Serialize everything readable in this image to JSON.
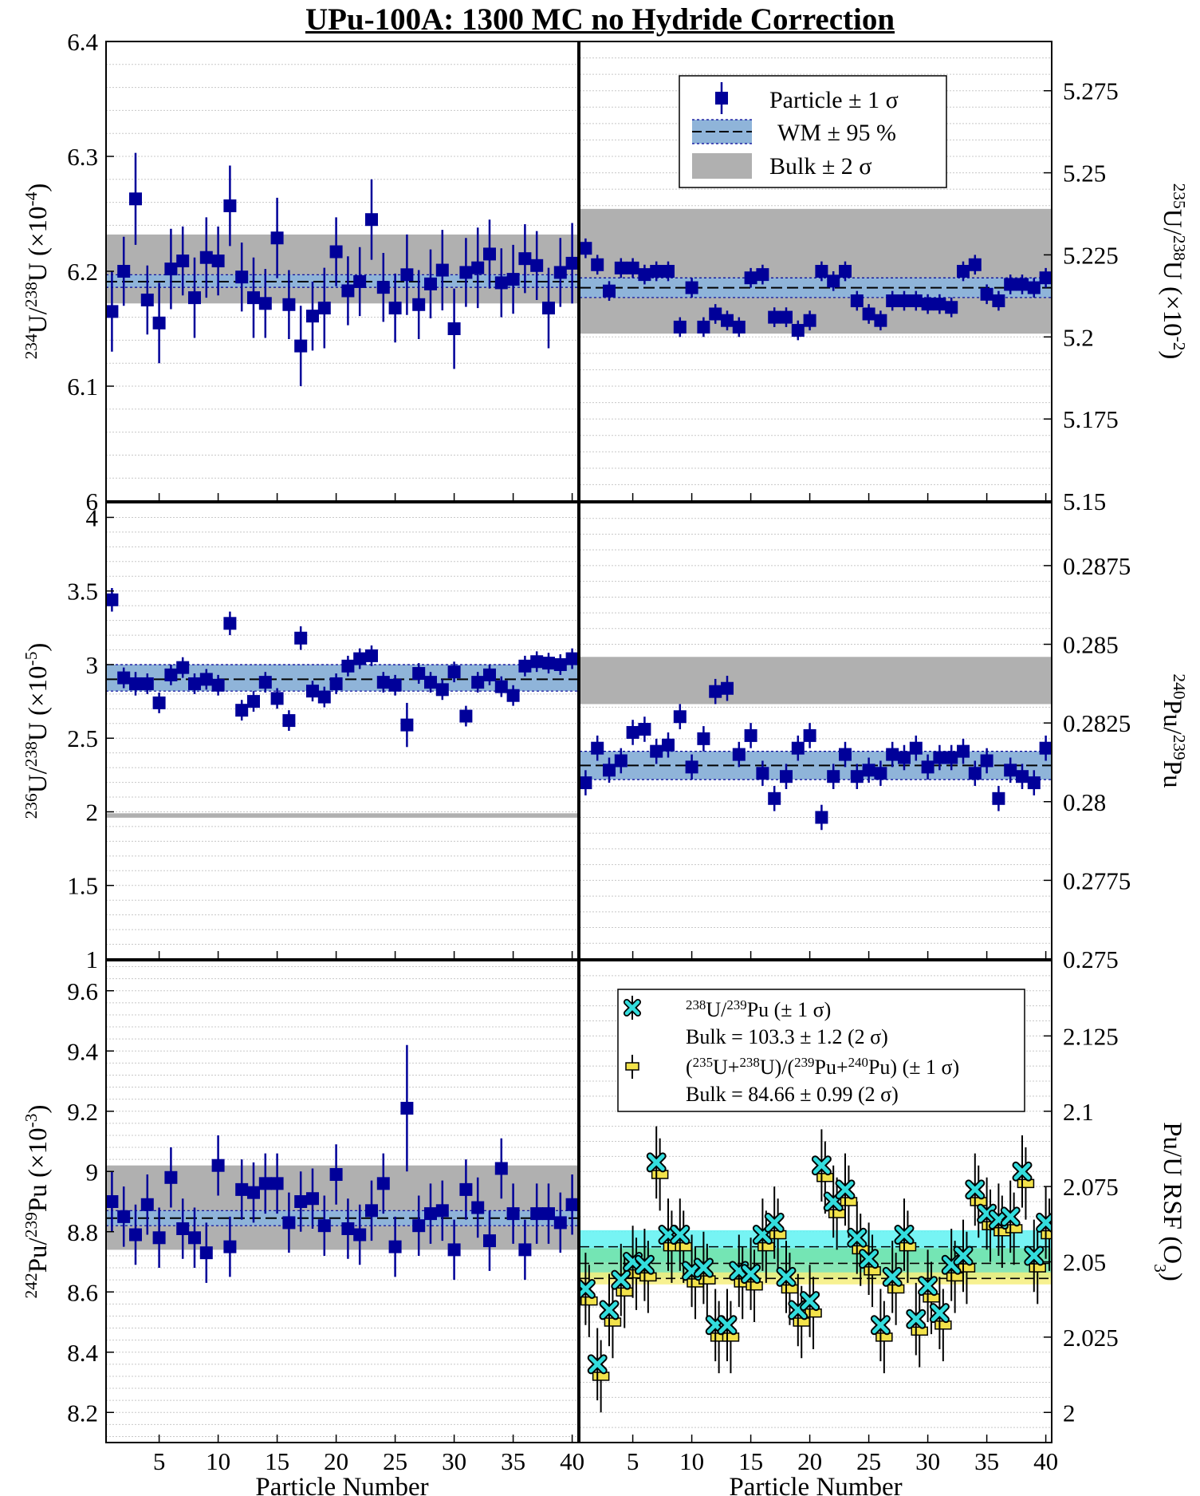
{
  "title": "UPu-100A: 1300 MC no Hydride Correction",
  "colors": {
    "marker": "#000099",
    "wm_band": "#8fb4d9",
    "bulk_band": "#b0b0b0",
    "cyan_marker": "#33dddd",
    "yellow_marker": "#f2e24a",
    "cyan_band": "#5ef2f2",
    "green_band": "#74e2a8",
    "yellow_band": "#f6ef7e"
  },
  "legends": {
    "top": {
      "particle": "Particle ± 1 σ",
      "wm": "WM ± 95 %",
      "bulk": "Bulk ± 2 σ"
    },
    "rsf": {
      "u_pu": "238U/239Pu (± 1 σ)",
      "u_pu_bulk": "Bulk = 103.3 ± 1.2 (2 σ)",
      "sum": "(235U+238U)/(239Pu+240Pu) (± 1 σ)",
      "sum_bulk": "Bulk = 84.66 ± 0.99 (2 σ)"
    }
  },
  "chart_data": [
    {
      "id": "u234",
      "type": "scatter",
      "ylabel": "234U/238U (×10-4)",
      "ylim": [
        6.0,
        6.4
      ],
      "yticks": [
        "6",
        "6.1",
        "6.2",
        "6.3",
        "6.4"
      ],
      "xlim": [
        0.5,
        40.5
      ],
      "xticks": [
        "5",
        "10",
        "15",
        "20",
        "25",
        "30",
        "35",
        "40"
      ],
      "xlabel": "",
      "wm": [
        6.186,
        6.197
      ],
      "wm_center": 6.191,
      "bulk": [
        6.172,
        6.232
      ],
      "x": [
        1,
        2,
        3,
        4,
        5,
        6,
        7,
        8,
        9,
        10,
        11,
        12,
        13,
        14,
        15,
        16,
        17,
        18,
        19,
        20,
        21,
        22,
        23,
        24,
        25,
        26,
        27,
        28,
        29,
        30,
        31,
        32,
        33,
        34,
        35,
        36,
        37,
        38,
        39,
        40
      ],
      "y": [
        6.165,
        6.2,
        6.263,
        6.175,
        6.155,
        6.202,
        6.209,
        6.177,
        6.212,
        6.209,
        6.257,
        6.195,
        6.177,
        6.172,
        6.229,
        6.171,
        6.135,
        6.161,
        6.168,
        6.217,
        6.183,
        6.191,
        6.245,
        6.186,
        6.168,
        6.197,
        6.171,
        6.189,
        6.201,
        6.15,
        6.199,
        6.203,
        6.215,
        6.19,
        6.193,
        6.211,
        6.205,
        6.168,
        6.199,
        6.207
      ],
      "err": [
        0.035,
        0.03,
        0.04,
        0.03,
        0.035,
        0.035,
        0.03,
        0.035,
        0.035,
        0.03,
        0.035,
        0.03,
        0.035,
        0.03,
        0.035,
        0.03,
        0.035,
        0.03,
        0.035,
        0.03,
        0.03,
        0.03,
        0.035,
        0.03,
        0.03,
        0.035,
        0.03,
        0.03,
        0.035,
        0.035,
        0.03,
        0.035,
        0.03,
        0.03,
        0.03,
        0.03,
        0.03,
        0.035,
        0.03,
        0.035
      ]
    },
    {
      "id": "u235",
      "type": "scatter",
      "ylabel": "235U/238U (×10-2)",
      "ylim": [
        5.15,
        5.29
      ],
      "yticks": [
        "5.15",
        "5.175",
        "5.2",
        "5.225",
        "5.25",
        "5.275"
      ],
      "xlim": [
        0.5,
        40.5
      ],
      "xticks": [
        "5",
        "10",
        "15",
        "20",
        "25",
        "30",
        "35",
        "40"
      ],
      "xlabel": "",
      "wm": [
        5.212,
        5.218
      ],
      "wm_center": 5.215,
      "bulk": [
        5.201,
        5.239
      ],
      "x": [
        1,
        2,
        3,
        4,
        5,
        6,
        7,
        8,
        9,
        10,
        11,
        12,
        13,
        14,
        15,
        16,
        17,
        18,
        19,
        20,
        21,
        22,
        23,
        24,
        25,
        26,
        27,
        28,
        29,
        30,
        31,
        32,
        33,
        34,
        35,
        36,
        37,
        38,
        39,
        40
      ],
      "y": [
        5.227,
        5.222,
        5.214,
        5.221,
        5.221,
        5.219,
        5.22,
        5.22,
        5.203,
        5.215,
        5.203,
        5.207,
        5.205,
        5.203,
        5.218,
        5.219,
        5.206,
        5.206,
        5.202,
        5.205,
        5.22,
        5.217,
        5.22,
        5.211,
        5.207,
        5.205,
        5.211,
        5.211,
        5.211,
        5.21,
        5.21,
        5.209,
        5.22,
        5.222,
        5.213,
        5.211,
        5.216,
        5.216,
        5.215,
        5.218
      ],
      "err": [
        0.003,
        0.003,
        0.003,
        0.003,
        0.003,
        0.003,
        0.003,
        0.003,
        0.003,
        0.003,
        0.003,
        0.003,
        0.003,
        0.003,
        0.003,
        0.003,
        0.003,
        0.003,
        0.003,
        0.003,
        0.003,
        0.003,
        0.003,
        0.003,
        0.003,
        0.003,
        0.003,
        0.003,
        0.003,
        0.003,
        0.003,
        0.003,
        0.003,
        0.003,
        0.003,
        0.003,
        0.003,
        0.003,
        0.003,
        0.003
      ]
    },
    {
      "id": "u236",
      "type": "scatter",
      "ylabel": "236U/238U (×10-5)",
      "ylim": [
        1.0,
        4.1
      ],
      "yticks": [
        "1",
        "1.5",
        "2",
        "2.5",
        "3",
        "3.5",
        "4"
      ],
      "xlim": [
        0.5,
        40.5
      ],
      "xticks": [
        "5",
        "10",
        "15",
        "20",
        "25",
        "30",
        "35",
        "40"
      ],
      "xlabel": "",
      "wm": [
        2.82,
        3.0
      ],
      "wm_center": 2.9,
      "bulk": [
        1.96,
        1.99
      ],
      "x": [
        1,
        2,
        3,
        4,
        5,
        6,
        7,
        8,
        9,
        10,
        11,
        12,
        13,
        14,
        15,
        16,
        17,
        18,
        19,
        20,
        21,
        22,
        23,
        24,
        25,
        26,
        27,
        28,
        29,
        30,
        31,
        32,
        33,
        34,
        35,
        36,
        37,
        38,
        39,
        40
      ],
      "y": [
        3.44,
        2.91,
        2.87,
        2.87,
        2.74,
        2.93,
        2.98,
        2.87,
        2.9,
        2.86,
        3.28,
        2.69,
        2.75,
        2.88,
        2.77,
        2.62,
        3.18,
        2.82,
        2.78,
        2.87,
        2.99,
        3.04,
        3.06,
        2.88,
        2.86,
        2.59,
        2.94,
        2.88,
        2.83,
        2.95,
        2.65,
        2.88,
        2.93,
        2.85,
        2.79,
        2.99,
        3.02,
        3.01,
        3.0,
        3.04
      ],
      "err": [
        0.08,
        0.07,
        0.08,
        0.07,
        0.07,
        0.07,
        0.07,
        0.07,
        0.07,
        0.07,
        0.08,
        0.07,
        0.07,
        0.07,
        0.07,
        0.07,
        0.08,
        0.07,
        0.07,
        0.07,
        0.07,
        0.07,
        0.07,
        0.07,
        0.07,
        0.15,
        0.07,
        0.07,
        0.07,
        0.07,
        0.07,
        0.07,
        0.07,
        0.07,
        0.07,
        0.07,
        0.07,
        0.07,
        0.07,
        0.07
      ]
    },
    {
      "id": "pu240",
      "type": "scatter",
      "ylabel": "240Pu/239Pu",
      "ylim": [
        0.275,
        0.2895
      ],
      "yticks": [
        "0.275",
        "0.2775",
        "0.28",
        "0.2825",
        "0.285",
        "0.2875"
      ],
      "xlim": [
        0.5,
        40.5
      ],
      "xticks": [
        "5",
        "10",
        "15",
        "20",
        "25",
        "30",
        "35",
        "40"
      ],
      "xlabel": "",
      "wm": [
        0.2807,
        0.2816
      ],
      "wm_center": 0.28115,
      "bulk": [
        0.2831,
        0.2846
      ],
      "x": [
        1,
        2,
        3,
        4,
        5,
        6,
        7,
        8,
        9,
        10,
        11,
        12,
        13,
        14,
        15,
        16,
        17,
        18,
        19,
        20,
        21,
        22,
        23,
        24,
        25,
        26,
        27,
        28,
        29,
        30,
        31,
        32,
        33,
        34,
        35,
        36,
        37,
        38,
        39,
        40
      ],
      "y": [
        0.2806,
        0.2817,
        0.281,
        0.2813,
        0.2822,
        0.2823,
        0.2816,
        0.2818,
        0.2827,
        0.2811,
        0.282,
        0.2835,
        0.2836,
        0.2815,
        0.2821,
        0.2809,
        0.2801,
        0.2808,
        0.2817,
        0.2821,
        0.2795,
        0.2808,
        0.2815,
        0.2808,
        0.281,
        0.2809,
        0.2815,
        0.2814,
        0.2817,
        0.2811,
        0.2814,
        0.2814,
        0.2816,
        0.2809,
        0.2813,
        0.2801,
        0.281,
        0.2808,
        0.2806,
        0.2817
      ],
      "err": [
        0.0004,
        0.0004,
        0.0004,
        0.0004,
        0.0004,
        0.0004,
        0.0004,
        0.0004,
        0.0004,
        0.0004,
        0.0004,
        0.0004,
        0.0004,
        0.0004,
        0.0004,
        0.0004,
        0.0004,
        0.0004,
        0.0004,
        0.0004,
        0.0004,
        0.0004,
        0.0004,
        0.0004,
        0.0004,
        0.0004,
        0.0004,
        0.0004,
        0.0004,
        0.0004,
        0.0004,
        0.0004,
        0.0004,
        0.0004,
        0.0004,
        0.0004,
        0.0004,
        0.0004,
        0.0004,
        0.0004
      ]
    },
    {
      "id": "pu242",
      "type": "scatter",
      "ylabel": "242Pu/239Pu (×10-3)",
      "ylim": [
        8.1,
        9.7
      ],
      "yticks": [
        "8.2",
        "8.4",
        "8.6",
        "8.8",
        "9",
        "9.2",
        "9.4",
        "9.6"
      ],
      "xlim": [
        0.5,
        40.5
      ],
      "xticks": [
        "5",
        "10",
        "15",
        "20",
        "25",
        "30",
        "35",
        "40"
      ],
      "xlabel": "Particle Number",
      "wm": [
        8.82,
        8.87
      ],
      "wm_center": 8.845,
      "bulk": [
        8.74,
        9.02
      ],
      "x": [
        1,
        2,
        3,
        4,
        5,
        6,
        7,
        8,
        9,
        10,
        11,
        12,
        13,
        14,
        15,
        16,
        17,
        18,
        19,
        20,
        21,
        22,
        23,
        24,
        25,
        26,
        27,
        28,
        29,
        30,
        31,
        32,
        33,
        34,
        35,
        36,
        37,
        38,
        39,
        40
      ],
      "y": [
        8.9,
        8.85,
        8.79,
        8.89,
        8.78,
        8.98,
        8.81,
        8.78,
        8.73,
        9.02,
        8.75,
        8.94,
        8.93,
        8.96,
        8.96,
        8.83,
        8.9,
        8.91,
        8.82,
        8.99,
        8.81,
        8.79,
        8.87,
        8.96,
        8.75,
        9.21,
        8.82,
        8.86,
        8.87,
        8.74,
        8.94,
        8.88,
        8.77,
        9.01,
        8.86,
        8.74,
        8.86,
        8.86,
        8.83,
        8.89
      ],
      "err": [
        0.1,
        0.1,
        0.1,
        0.1,
        0.1,
        0.1,
        0.1,
        0.1,
        0.1,
        0.1,
        0.1,
        0.1,
        0.1,
        0.1,
        0.1,
        0.1,
        0.1,
        0.1,
        0.1,
        0.1,
        0.1,
        0.1,
        0.1,
        0.1,
        0.1,
        0.21,
        0.1,
        0.1,
        0.1,
        0.1,
        0.1,
        0.1,
        0.1,
        0.1,
        0.1,
        0.1,
        0.1,
        0.1,
        0.1,
        0.1
      ]
    },
    {
      "id": "rsf",
      "type": "scatter",
      "ylabel": "Pu/U RSF (O3)",
      "ylim": [
        1.99,
        2.15
      ],
      "yticks": [
        "2",
        "2.025",
        "2.05",
        "2.075",
        "2.1",
        "2.125"
      ],
      "xlim": [
        0.5,
        40.5
      ],
      "xticks": [
        "5",
        "10",
        "15",
        "20",
        "25",
        "30",
        "35",
        "40"
      ],
      "xlabel": "Particle Number",
      "bands": [
        {
          "name": "cyan",
          "range": [
            2.05,
            2.0605
          ],
          "center": 2.055
        },
        {
          "name": "green",
          "range": [
            2.0445,
            2.0545
          ],
          "center": 2.0495
        },
        {
          "name": "yellow",
          "range": [
            2.0425,
            2.0465
          ],
          "center": 2.0445
        }
      ],
      "series": [
        {
          "name": "238U/239Pu (± 1 σ)",
          "x": [
            1,
            2,
            3,
            4,
            5,
            6,
            7,
            8,
            9,
            10,
            11,
            12,
            13,
            14,
            15,
            16,
            17,
            18,
            19,
            20,
            21,
            22,
            23,
            24,
            25,
            26,
            27,
            28,
            29,
            30,
            31,
            32,
            33,
            34,
            35,
            36,
            37,
            38,
            39,
            40
          ],
          "y": [
            2.041,
            2.016,
            2.034,
            2.044,
            2.05,
            2.049,
            2.083,
            2.059,
            2.059,
            2.047,
            2.048,
            2.029,
            2.029,
            2.047,
            2.046,
            2.059,
            2.063,
            2.045,
            2.034,
            2.037,
            2.082,
            2.07,
            2.074,
            2.058,
            2.051,
            2.029,
            2.045,
            2.059,
            2.031,
            2.042,
            2.033,
            2.049,
            2.052,
            2.074,
            2.066,
            2.064,
            2.065,
            2.08,
            2.052,
            2.063
          ],
          "err": [
            0.012,
            0.012,
            0.012,
            0.012,
            0.012,
            0.012,
            0.012,
            0.012,
            0.012,
            0.012,
            0.012,
            0.012,
            0.012,
            0.012,
            0.012,
            0.012,
            0.012,
            0.012,
            0.012,
            0.012,
            0.012,
            0.012,
            0.012,
            0.012,
            0.012,
            0.012,
            0.012,
            0.012,
            0.012,
            0.012,
            0.012,
            0.012,
            0.012,
            0.012,
            0.012,
            0.012,
            0.012,
            0.012,
            0.012,
            0.012
          ]
        },
        {
          "name": "(235U+238U)/(239Pu+240Pu) (± 1 σ)",
          "x": [
            1.3,
            2.3,
            3.3,
            4.3,
            5.3,
            6.3,
            7.3,
            8.3,
            9.3,
            10.3,
            11.3,
            12.3,
            13.3,
            14.3,
            15.3,
            16.3,
            17.3,
            18.3,
            19.3,
            20.3,
            21.3,
            22.3,
            23.3,
            24.3,
            25.3,
            26.3,
            27.3,
            28.3,
            29.3,
            30.3,
            31.3,
            32.3,
            33.3,
            34.3,
            35.3,
            36.3,
            37.3,
            38.3,
            39.3,
            40.3
          ],
          "y": [
            2.037,
            2.012,
            2.03,
            2.04,
            2.046,
            2.045,
            2.079,
            2.055,
            2.055,
            2.043,
            2.044,
            2.025,
            2.025,
            2.043,
            2.042,
            2.055,
            2.059,
            2.041,
            2.03,
            2.033,
            2.078,
            2.066,
            2.07,
            2.054,
            2.047,
            2.025,
            2.041,
            2.055,
            2.027,
            2.038,
            2.029,
            2.045,
            2.048,
            2.07,
            2.062,
            2.06,
            2.061,
            2.076,
            2.048,
            2.059
          ],
          "err": [
            0.012,
            0.012,
            0.012,
            0.012,
            0.012,
            0.012,
            0.012,
            0.012,
            0.012,
            0.012,
            0.012,
            0.012,
            0.012,
            0.012,
            0.012,
            0.012,
            0.012,
            0.012,
            0.012,
            0.012,
            0.012,
            0.012,
            0.012,
            0.012,
            0.012,
            0.012,
            0.012,
            0.012,
            0.012,
            0.012,
            0.012,
            0.012,
            0.012,
            0.012,
            0.012,
            0.012,
            0.012,
            0.012,
            0.012,
            0.012
          ]
        }
      ]
    }
  ]
}
